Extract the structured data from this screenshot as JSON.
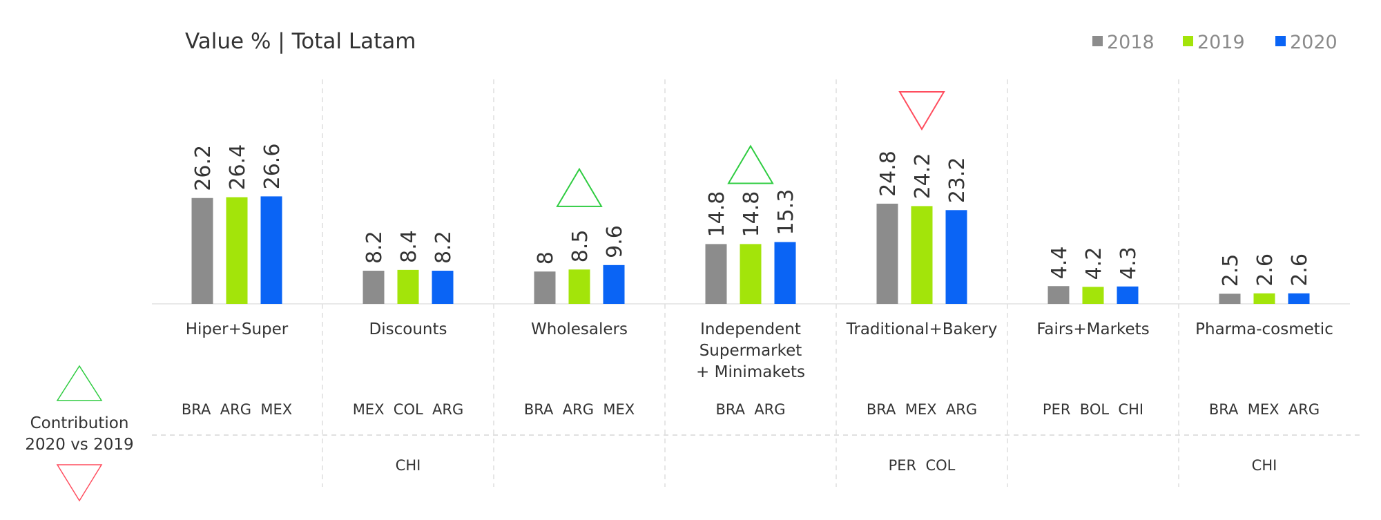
{
  "chart_data": {
    "type": "bar",
    "title": "Value % | Total Latam",
    "xlabel": "",
    "ylabel": "",
    "grid": false,
    "legend_position": "top-right",
    "categories": [
      "Hiper+Super",
      "Discounts",
      "Wholesalers",
      "Independent Supermarket + Minimakets",
      "Traditional+Bakery",
      "Fairs+Markets",
      "Pharma-cosmetic"
    ],
    "category_label_lines": [
      [
        "Hiper+Super"
      ],
      [
        "Discounts"
      ],
      [
        "Wholesalers"
      ],
      [
        "Independent",
        "Supermarket",
        "+ Minimakets"
      ],
      [
        "Traditional+Bakery"
      ],
      [
        "Fairs+Markets"
      ],
      [
        "Pharma-cosmetic"
      ]
    ],
    "series": [
      {
        "name": "2018",
        "color": "#8c8c8c",
        "values": [
          26.2,
          8.2,
          8,
          14.8,
          24.8,
          4.4,
          2.5
        ]
      },
      {
        "name": "2019",
        "color": "#a3e40a",
        "values": [
          26.4,
          8.4,
          8.5,
          14.8,
          24.2,
          4.2,
          2.6
        ]
      },
      {
        "name": "2020",
        "color": "#0a64f5",
        "values": [
          26.6,
          8.2,
          9.6,
          15.3,
          23.2,
          4.3,
          2.6
        ]
      }
    ],
    "trend_markers": [
      "none",
      "none",
      "up",
      "up",
      "down",
      "none",
      "none"
    ],
    "contribution": {
      "label_line1": "Contribution",
      "label_line2": "2020 vs 2019",
      "positive_color": "#2ecc40",
      "negative_color": "#ff4d5e",
      "positive": [
        "BRA  ARG  MEX",
        "MEX  COL  ARG",
        "BRA  ARG  MEX",
        "BRA  ARG",
        "BRA  MEX  ARG",
        "PER  BOL  CHI",
        "BRA  MEX  ARG"
      ],
      "negative": [
        "",
        "CHI",
        "",
        "",
        "PER  COL",
        "",
        "CHI"
      ]
    },
    "ylim": [
      0,
      30
    ]
  }
}
